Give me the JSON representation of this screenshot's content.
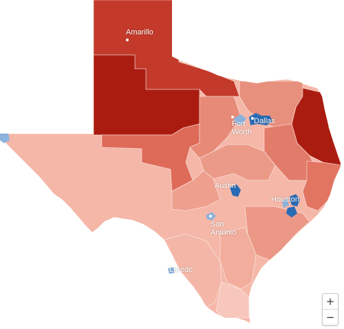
{
  "map": {
    "region": "Texas",
    "colors": {
      "darkest_red": "#ab1c10",
      "dark_red": "#c33a2a",
      "medium_red": "#de6a58",
      "light_red": "#eea08f",
      "pale_red": "#f5b7a8",
      "very_pale": "#f7c7bb",
      "blue": "#2a6bb5",
      "light_blue": "#8bb3dd"
    },
    "cities": [
      {
        "id": "amarillo",
        "label": "Amarillo"
      },
      {
        "id": "fort-worth",
        "label": "Fort Worth"
      },
      {
        "id": "dallas",
        "label": "Dallas"
      },
      {
        "id": "austin",
        "label": "Austin"
      },
      {
        "id": "houston",
        "label": "Houston"
      },
      {
        "id": "san-antonio",
        "label": "San Antonio"
      },
      {
        "id": "laredo",
        "label": "Laredo"
      }
    ]
  },
  "controls": {
    "zoom_in": "+",
    "zoom_out": "−"
  }
}
